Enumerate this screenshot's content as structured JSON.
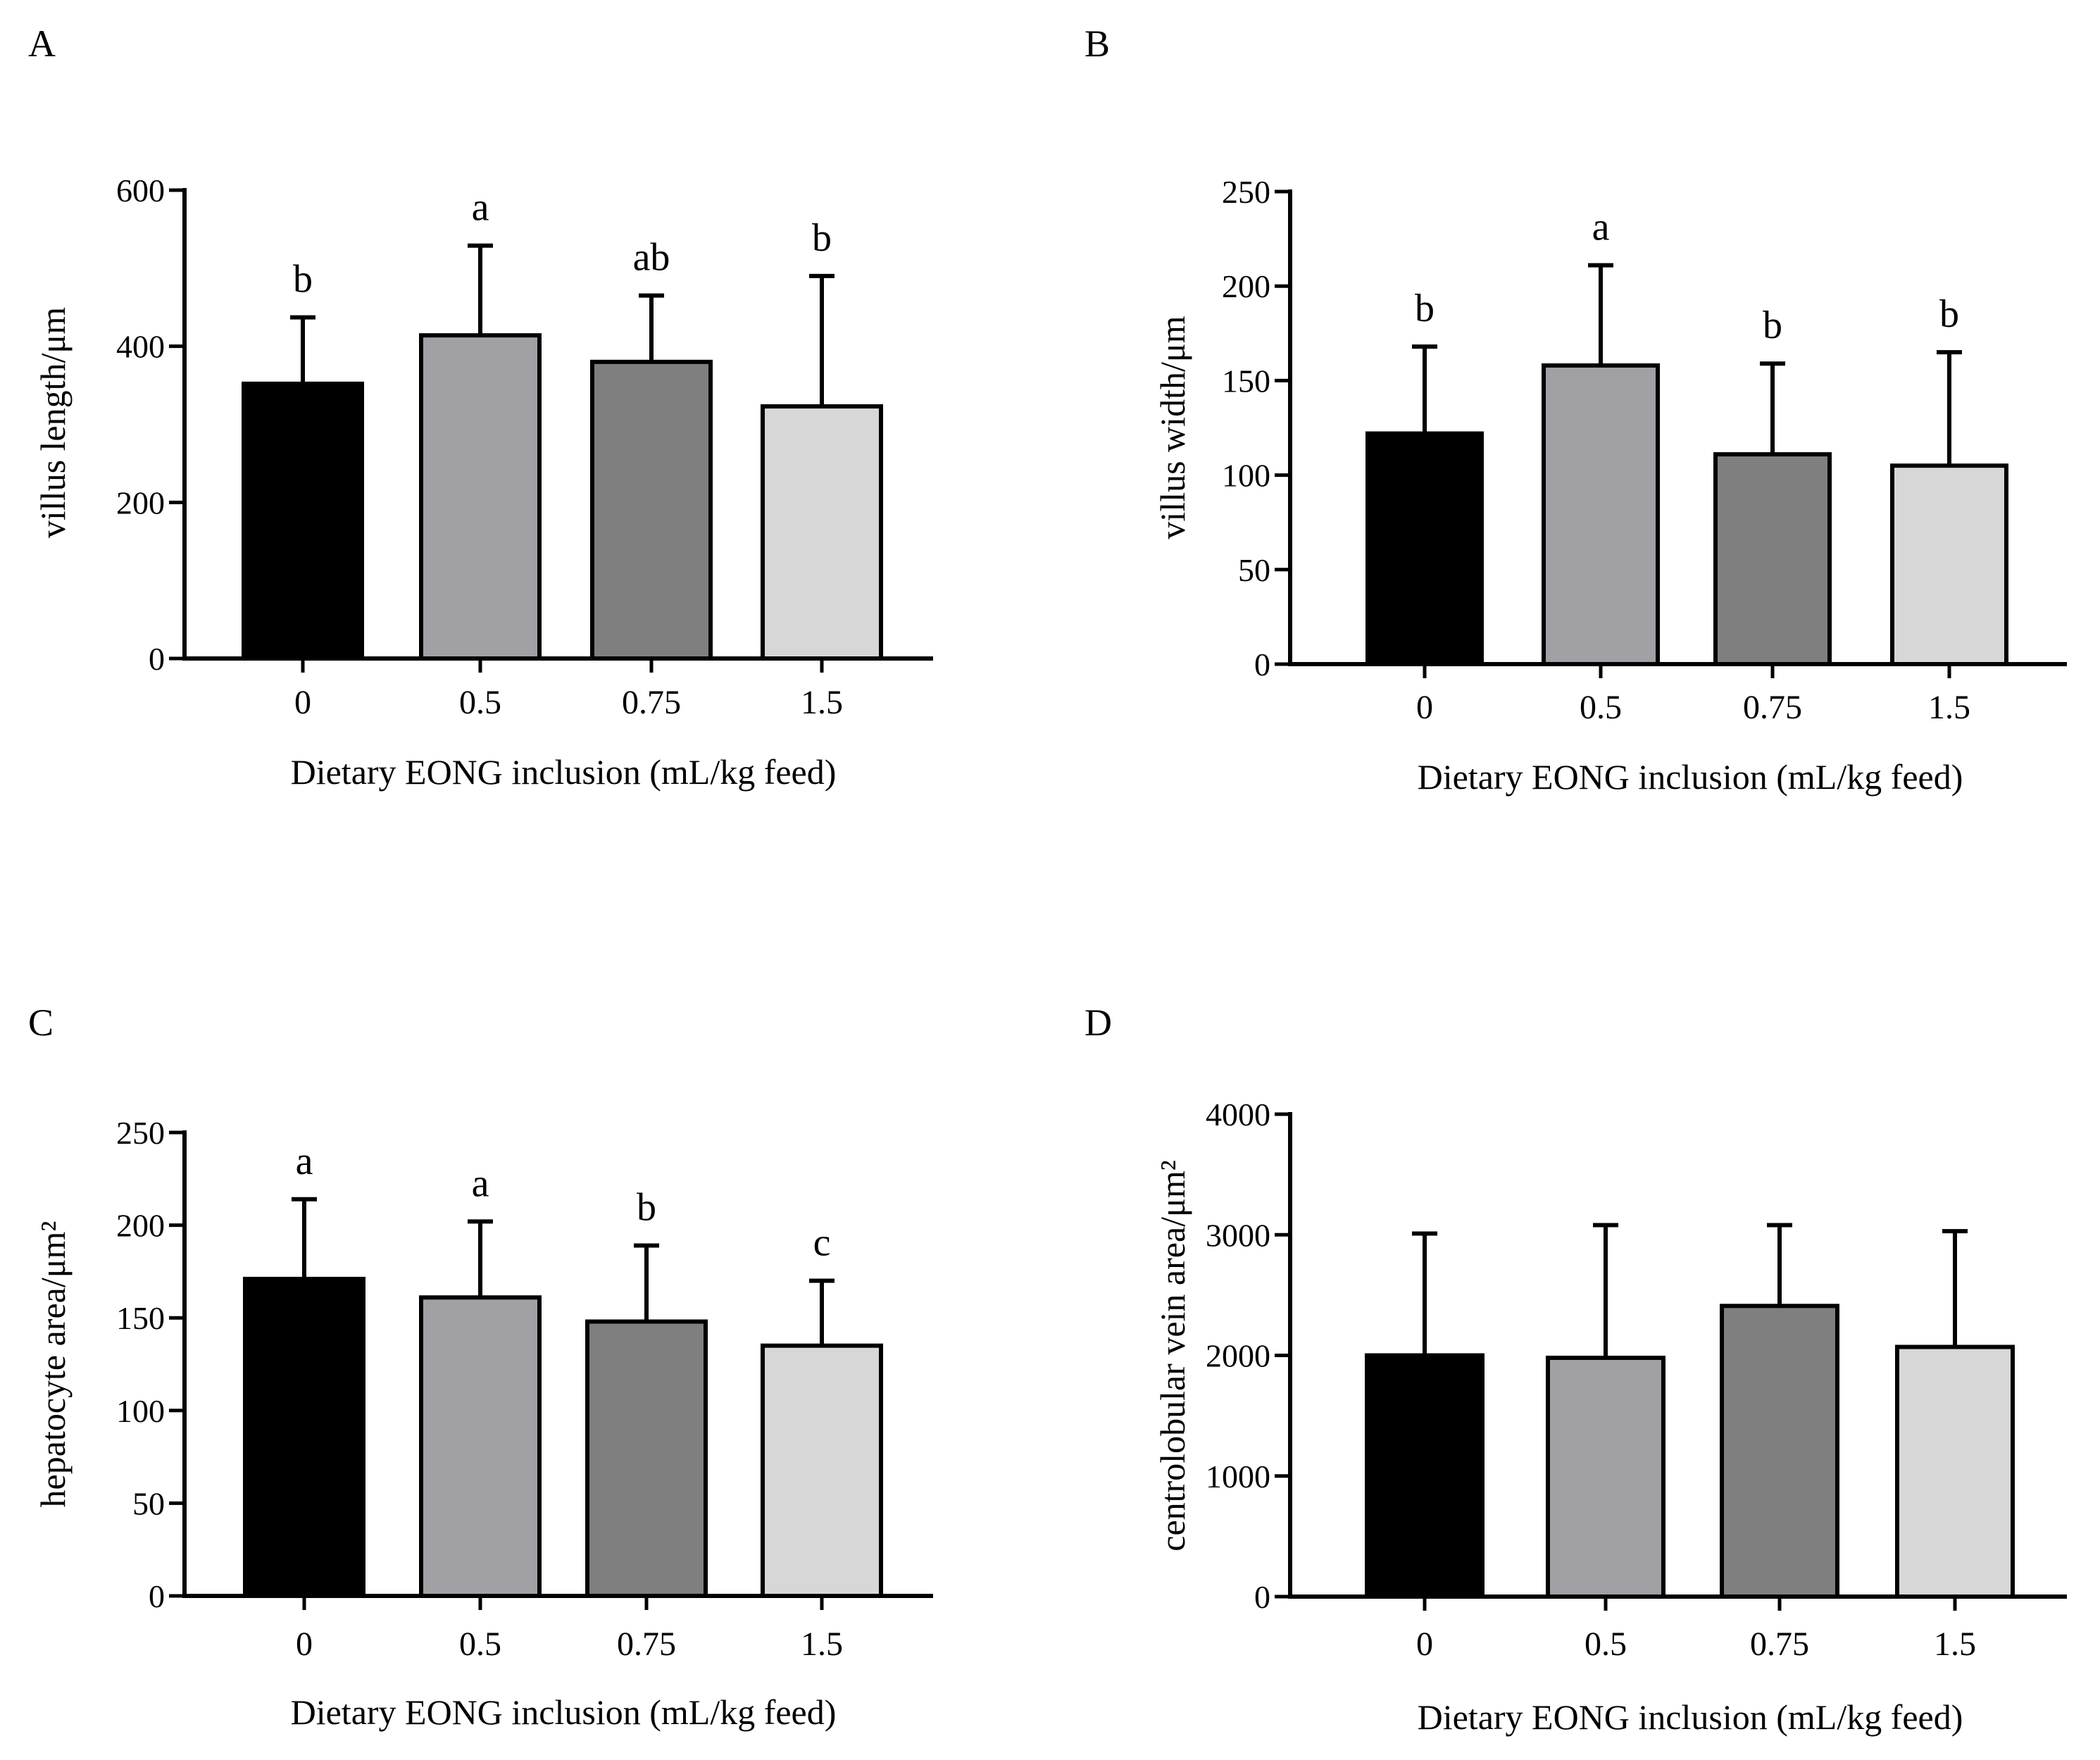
{
  "colors": {
    "axis": "#000000",
    "bar_fills": [
      "#000000",
      "#A1A0A4",
      "#7F7F7F",
      "#D7D7D7"
    ],
    "bar_stroke": "#000000"
  },
  "chart_data": [
    {
      "panel": "A",
      "type": "bar",
      "categories": [
        "0",
        "0.5",
        "0.75",
        "1.5"
      ],
      "values": [
        352,
        414,
        380,
        323
      ],
      "errors": [
        85,
        115,
        85,
        167
      ],
      "letters": [
        "b",
        "a",
        "ab",
        "b"
      ],
      "ylabel": "villus length/μm",
      "xlabel": "Dietary EONG inclusion (mL/kg feed)",
      "ylim": [
        0,
        600
      ],
      "yticks": [
        0,
        200,
        400,
        600
      ]
    },
    {
      "panel": "B",
      "type": "bar",
      "categories": [
        "0",
        "0.5",
        "0.75",
        "1.5"
      ],
      "values": [
        122,
        158,
        111,
        105
      ],
      "errors": [
        46,
        53,
        48,
        60
      ],
      "letters": [
        "b",
        "a",
        "b",
        "b"
      ],
      "ylabel": "villus width/μm",
      "xlabel": "Dietary EONG inclusion (mL/kg feed)",
      "ylim": [
        0,
        250
      ],
      "yticks": [
        0,
        50,
        100,
        150,
        200,
        250
      ]
    },
    {
      "panel": "C",
      "type": "bar",
      "categories": [
        "0",
        "0.5",
        "0.75",
        "1.5"
      ],
      "values": [
        171,
        161,
        148,
        135
      ],
      "errors": [
        43,
        41,
        41,
        35
      ],
      "letters": [
        "a",
        "a",
        "b",
        "c"
      ],
      "ylabel": "hepatocyte area/μm²",
      "xlabel": "Dietary EONG inclusion (mL/kg feed)",
      "ylim": [
        0,
        250
      ],
      "yticks": [
        0,
        50,
        100,
        150,
        200,
        250
      ]
    },
    {
      "panel": "D",
      "type": "bar",
      "categories": [
        "0",
        "0.5",
        "0.75",
        "1.5"
      ],
      "values": [
        2000,
        1980,
        2410,
        2070
      ],
      "errors": [
        1010,
        1100,
        670,
        960
      ],
      "letters": [
        "",
        "",
        "",
        ""
      ],
      "ylabel": "centrolobular vein area/μm²",
      "xlabel": "Dietary EONG inclusion (mL/kg feed)",
      "ylim": [
        0,
        4000
      ],
      "yticks": [
        0,
        1000,
        2000,
        3000,
        4000
      ]
    }
  ]
}
